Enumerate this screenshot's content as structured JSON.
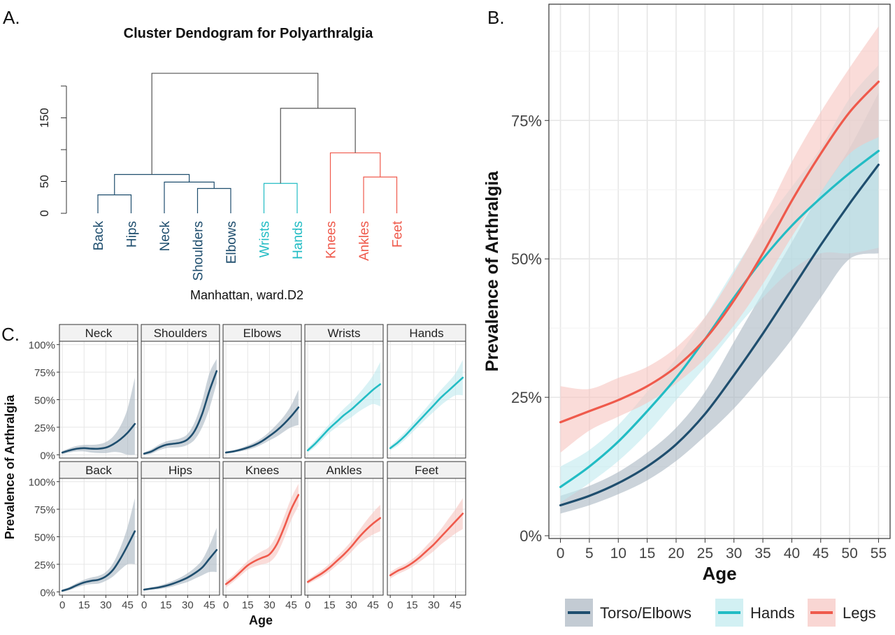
{
  "panel_labels": {
    "a": "A.",
    "b": "B.",
    "c": "C."
  },
  "colors": {
    "torso": "#1f4e6e",
    "hands": "#22bcc4",
    "legs": "#ef5a4c",
    "root": "#555555",
    "grid": "#e6e6e6",
    "band_torso": "#a9b5c1",
    "band_hands": "#bfeaee",
    "band_legs": "#f7c5c0"
  },
  "chart_data": [
    {
      "type": "dendrogram",
      "title": "Cluster Dendogram for Polyarthralgia",
      "xlabel": "Manhattan, ward.D2",
      "ylim": [
        0,
        200
      ],
      "y_ticks": [
        0,
        50,
        150
      ],
      "leaves": [
        {
          "label": "Back",
          "group": "torso"
        },
        {
          "label": "Hips",
          "group": "torso"
        },
        {
          "label": "Neck",
          "group": "torso"
        },
        {
          "label": "Shoulders",
          "group": "torso"
        },
        {
          "label": "Elbows",
          "group": "torso"
        },
        {
          "label": "Wrists",
          "group": "hands"
        },
        {
          "label": "Hands",
          "group": "hands"
        },
        {
          "label": "Knees",
          "group": "legs"
        },
        {
          "label": "Ankles",
          "group": "legs"
        },
        {
          "label": "Feet",
          "group": "legs"
        }
      ],
      "merges": [
        {
          "left": [
            0
          ],
          "right": [
            1
          ],
          "height": 29
        },
        {
          "left": [
            3
          ],
          "right": [
            4
          ],
          "height": 39
        },
        {
          "left": [
            2
          ],
          "right": [
            3,
            4
          ],
          "height": 49
        },
        {
          "left": [
            0,
            1
          ],
          "right": [
            2,
            3,
            4
          ],
          "height": 61
        },
        {
          "left": [
            5
          ],
          "right": [
            6
          ],
          "height": 47
        },
        {
          "left": [
            8
          ],
          "right": [
            9
          ],
          "height": 57
        },
        {
          "left": [
            7
          ],
          "right": [
            8,
            9
          ],
          "height": 95
        },
        {
          "left": [
            5,
            6
          ],
          "right": [
            7,
            8,
            9
          ],
          "height": 165
        },
        {
          "left": [
            0,
            1,
            2,
            3,
            4
          ],
          "right": [
            5,
            6,
            7,
            8,
            9
          ],
          "height": 220
        }
      ]
    },
    {
      "type": "line",
      "xlabel": "Age",
      "ylabel": "Prevalence of Arthralgia",
      "xlim": [
        -2,
        57
      ],
      "ylim": [
        -0.005,
        0.96
      ],
      "x_ticks": [
        0,
        5,
        10,
        15,
        20,
        25,
        30,
        35,
        40,
        45,
        50,
        55
      ],
      "y_ticks": [
        0,
        0.25,
        0.5,
        0.75
      ],
      "y_tick_labels": [
        "0%",
        "25%",
        "50%",
        "75%"
      ],
      "grid": true,
      "legend_position": "bottom",
      "x": [
        0,
        5,
        10,
        15,
        20,
        25,
        30,
        35,
        40,
        45,
        50,
        55
      ],
      "series": [
        {
          "name": "Torso/Elbows",
          "color_key": "torso",
          "values": [
            0.055,
            0.072,
            0.095,
            0.125,
            0.165,
            0.22,
            0.29,
            0.365,
            0.445,
            0.525,
            0.6,
            0.67
          ],
          "lower": [
            0.04,
            0.055,
            0.075,
            0.1,
            0.135,
            0.18,
            0.23,
            0.29,
            0.355,
            0.43,
            0.5,
            0.51
          ],
          "upper": [
            0.072,
            0.09,
            0.115,
            0.15,
            0.195,
            0.26,
            0.35,
            0.44,
            0.53,
            0.62,
            0.7,
            0.8
          ]
        },
        {
          "name": "Hands",
          "color_key": "hands",
          "values": [
            0.088,
            0.125,
            0.17,
            0.225,
            0.285,
            0.355,
            0.43,
            0.5,
            0.56,
            0.61,
            0.655,
            0.695
          ],
          "lower": [
            0.06,
            0.095,
            0.135,
            0.185,
            0.245,
            0.305,
            0.37,
            0.43,
            0.48,
            0.51,
            0.51,
            0.52
          ],
          "upper": [
            0.125,
            0.155,
            0.2,
            0.26,
            0.32,
            0.395,
            0.48,
            0.56,
            0.63,
            0.7,
            0.79,
            0.85
          ]
        },
        {
          "name": "Legs",
          "color_key": "legs",
          "values": [
            0.205,
            0.225,
            0.245,
            0.27,
            0.305,
            0.355,
            0.425,
            0.51,
            0.605,
            0.69,
            0.765,
            0.82
          ],
          "lower": [
            0.15,
            0.19,
            0.215,
            0.24,
            0.275,
            0.32,
            0.38,
            0.455,
            0.54,
            0.62,
            0.69,
            0.72
          ],
          "upper": [
            0.27,
            0.265,
            0.285,
            0.305,
            0.34,
            0.395,
            0.475,
            0.57,
            0.675,
            0.765,
            0.845,
            0.92
          ]
        }
      ]
    },
    {
      "type": "line",
      "facet": true,
      "xlabel": "Age",
      "ylabel": "Prevalence of Arthralgia",
      "xlim": [
        -2,
        52
      ],
      "ylim": [
        -0.03,
        1.03
      ],
      "x_ticks": [
        0,
        15,
        30,
        45
      ],
      "y_ticks": [
        0,
        0.25,
        0.5,
        0.75,
        1.0
      ],
      "y_tick_labels": [
        "0%",
        "25%",
        "50%",
        "75%",
        "100%"
      ],
      "x": [
        0,
        5,
        10,
        15,
        20,
        25,
        30,
        35,
        40,
        45,
        50
      ],
      "panels": [
        {
          "name": "Neck",
          "color_key": "torso",
          "values": [
            0.02,
            0.04,
            0.055,
            0.06,
            0.055,
            0.055,
            0.065,
            0.095,
            0.14,
            0.2,
            0.28
          ],
          "band": [
            0.015,
            0.02,
            0.025,
            0.03,
            0.035,
            0.04,
            0.05,
            0.07,
            0.12,
            0.22,
            0.42
          ]
        },
        {
          "name": "Shoulders",
          "color_key": "torso",
          "values": [
            0.01,
            0.03,
            0.065,
            0.09,
            0.1,
            0.11,
            0.14,
            0.22,
            0.37,
            0.58,
            0.76
          ],
          "band": [
            0.01,
            0.02,
            0.025,
            0.03,
            0.035,
            0.04,
            0.05,
            0.08,
            0.12,
            0.16,
            0.11
          ]
        },
        {
          "name": "Elbows",
          "color_key": "torso",
          "values": [
            0.02,
            0.03,
            0.045,
            0.065,
            0.09,
            0.125,
            0.17,
            0.22,
            0.28,
            0.35,
            0.43
          ],
          "band": [
            0.01,
            0.01,
            0.015,
            0.02,
            0.025,
            0.03,
            0.04,
            0.055,
            0.07,
            0.1,
            0.16
          ]
        },
        {
          "name": "Wrists",
          "color_key": "hands",
          "values": [
            0.04,
            0.1,
            0.17,
            0.24,
            0.3,
            0.36,
            0.41,
            0.47,
            0.53,
            0.59,
            0.64
          ],
          "band": [
            0.02,
            0.03,
            0.035,
            0.04,
            0.05,
            0.06,
            0.07,
            0.08,
            0.1,
            0.13,
            0.2
          ]
        },
        {
          "name": "Hands",
          "color_key": "hands",
          "values": [
            0.06,
            0.11,
            0.17,
            0.24,
            0.31,
            0.38,
            0.45,
            0.52,
            0.58,
            0.64,
            0.7
          ],
          "band": [
            0.02,
            0.03,
            0.035,
            0.04,
            0.045,
            0.05,
            0.06,
            0.07,
            0.08,
            0.1,
            0.16
          ]
        },
        {
          "name": "Back",
          "color_key": "torso",
          "values": [
            0.01,
            0.03,
            0.06,
            0.085,
            0.1,
            0.11,
            0.14,
            0.2,
            0.3,
            0.42,
            0.55
          ],
          "band": [
            0.01,
            0.015,
            0.02,
            0.025,
            0.03,
            0.035,
            0.04,
            0.06,
            0.1,
            0.17,
            0.3
          ]
        },
        {
          "name": "Hips",
          "color_key": "torso",
          "values": [
            0.02,
            0.03,
            0.04,
            0.055,
            0.075,
            0.1,
            0.13,
            0.17,
            0.22,
            0.3,
            0.38
          ],
          "band": [
            0.01,
            0.01,
            0.015,
            0.02,
            0.025,
            0.03,
            0.04,
            0.05,
            0.07,
            0.12,
            0.2
          ]
        },
        {
          "name": "Knees",
          "color_key": "legs",
          "values": [
            0.07,
            0.12,
            0.18,
            0.24,
            0.28,
            0.31,
            0.34,
            0.43,
            0.58,
            0.75,
            0.88
          ],
          "band": [
            0.03,
            0.03,
            0.035,
            0.04,
            0.05,
            0.06,
            0.07,
            0.09,
            0.1,
            0.1,
            0.1
          ]
        },
        {
          "name": "Ankles",
          "color_key": "legs",
          "values": [
            0.09,
            0.13,
            0.17,
            0.22,
            0.28,
            0.34,
            0.41,
            0.49,
            0.56,
            0.62,
            0.67
          ],
          "band": [
            0.02,
            0.025,
            0.03,
            0.035,
            0.04,
            0.045,
            0.05,
            0.06,
            0.08,
            0.1,
            0.12
          ]
        },
        {
          "name": "Feet",
          "color_key": "legs",
          "values": [
            0.15,
            0.19,
            0.22,
            0.26,
            0.31,
            0.37,
            0.43,
            0.5,
            0.57,
            0.64,
            0.71
          ],
          "band": [
            0.03,
            0.03,
            0.03,
            0.035,
            0.04,
            0.05,
            0.06,
            0.07,
            0.09,
            0.11,
            0.14
          ]
        }
      ]
    }
  ]
}
